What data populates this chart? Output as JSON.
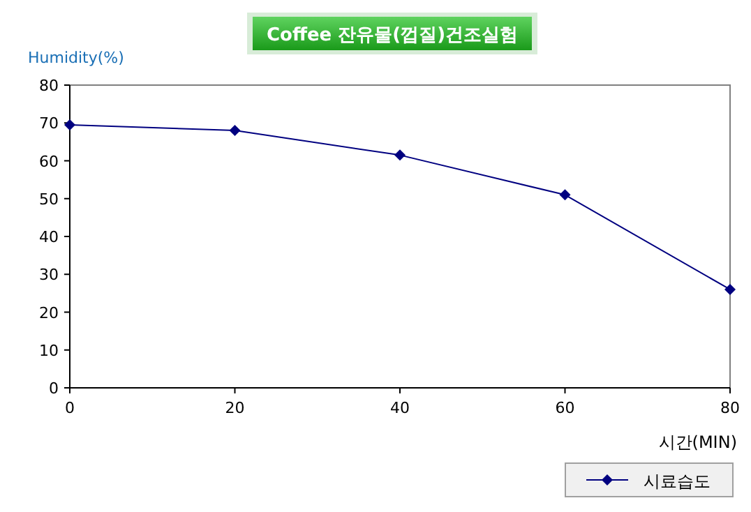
{
  "chart_data": {
    "type": "line",
    "title": "Coffee 잔유물(껍질)건조실험",
    "xlabel": "시간(MIN)",
    "ylabel": "Humidity(%)",
    "x": [
      0,
      20,
      40,
      60,
      80
    ],
    "series": [
      {
        "name": "시료습도",
        "color": "#000080",
        "values": [
          69.5,
          68,
          61.5,
          51,
          26
        ]
      }
    ],
    "xlim": [
      0,
      80
    ],
    "xticks": [
      0,
      20,
      40,
      60,
      80
    ],
    "ylim": [
      0,
      80
    ],
    "yticks": [
      0,
      10,
      20,
      30,
      40,
      50,
      60,
      70,
      80
    ],
    "grid": false,
    "legend": "bottom right",
    "marker": "diamond",
    "line_style": "solid"
  }
}
